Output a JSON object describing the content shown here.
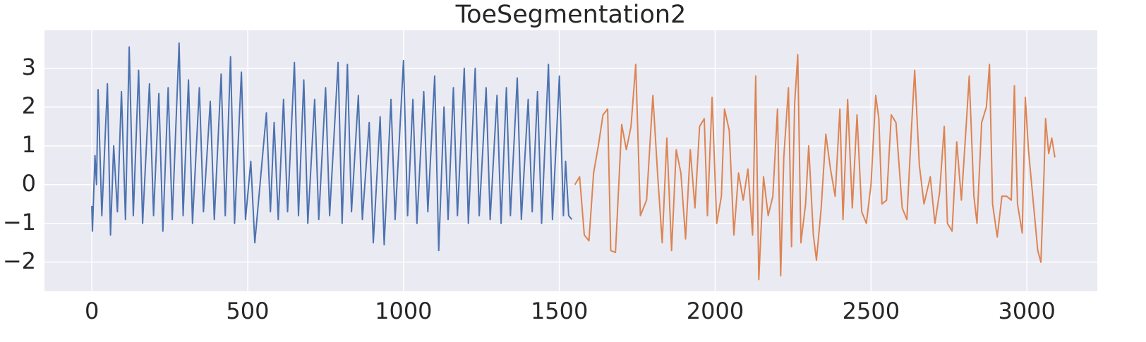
{
  "chart_data": {
    "type": "line",
    "title": "ToeSegmentation2",
    "xlim": [
      -152,
      3226
    ],
    "ylim": [
      -2.75,
      3.98
    ],
    "xticks": [
      0,
      500,
      1000,
      1500,
      2000,
      2500,
      3000
    ],
    "yticks": [
      {
        "value": -2,
        "label": "−2"
      },
      {
        "value": -1,
        "label": "−1"
      },
      0,
      1,
      2,
      3
    ],
    "grid": true,
    "series": [
      {
        "color": "#4c72b0",
        "x": [
          0,
          2,
          10,
          15,
          20,
          32,
          50,
          60,
          70,
          82,
          95,
          108,
          120,
          133,
          150,
          163,
          185,
          198,
          215,
          228,
          245,
          258,
          280,
          293,
          310,
          323,
          345,
          358,
          380,
          393,
          415,
          428,
          445,
          458,
          480,
          493,
          510,
          523,
          560,
          573,
          585,
          598,
          615,
          628,
          650,
          663,
          680,
          693,
          715,
          728,
          750,
          763,
          790,
          803,
          820,
          833,
          855,
          868,
          890,
          903,
          925,
          938,
          960,
          973,
          1000,
          1013,
          1030,
          1043,
          1065,
          1078,
          1100,
          1113,
          1130,
          1143,
          1160,
          1173,
          1195,
          1208,
          1230,
          1243,
          1265,
          1278,
          1300,
          1313,
          1330,
          1343,
          1365,
          1378,
          1400,
          1413,
          1430,
          1443,
          1465,
          1478,
          1500,
          1513,
          1520,
          1530,
          1540
        ],
        "values": [
          -0.55,
          -1.2,
          0.75,
          0.0,
          2.45,
          -0.8,
          2.6,
          -1.3,
          1.0,
          -0.7,
          2.4,
          -0.9,
          3.55,
          -0.8,
          2.95,
          -1.0,
          2.6,
          -0.8,
          2.35,
          -1.2,
          2.5,
          -0.9,
          3.65,
          -0.8,
          2.7,
          -1.0,
          2.5,
          -0.7,
          2.15,
          -0.9,
          2.85,
          -0.8,
          3.3,
          -1.0,
          2.9,
          -0.9,
          0.6,
          -1.5,
          1.85,
          -0.7,
          1.6,
          -0.9,
          2.2,
          -0.7,
          3.15,
          -0.8,
          2.7,
          -1.0,
          2.2,
          -0.9,
          2.5,
          -0.8,
          3.15,
          -1.0,
          3.1,
          -0.7,
          2.3,
          -0.9,
          1.6,
          -1.5,
          1.75,
          -1.55,
          2.2,
          -0.9,
          3.2,
          -0.8,
          2.2,
          -1.0,
          2.4,
          -0.7,
          2.8,
          -1.7,
          2.0,
          -0.9,
          2.5,
          -0.8,
          3.0,
          -1.0,
          3.0,
          -0.8,
          2.5,
          -0.9,
          2.3,
          -1.0,
          2.5,
          -0.8,
          2.75,
          -0.9,
          2.2,
          -0.7,
          2.4,
          -1.0,
          3.1,
          -0.9,
          2.8,
          -0.8,
          0.6,
          -0.8,
          -0.9
        ]
      },
      {
        "color": "#dd8452",
        "x": [
          1550,
          1565,
          1580,
          1595,
          1610,
          1625,
          1640,
          1655,
          1665,
          1680,
          1700,
          1715,
          1730,
          1745,
          1760,
          1780,
          1800,
          1815,
          1830,
          1845,
          1860,
          1875,
          1890,
          1905,
          1920,
          1935,
          1950,
          1965,
          1975,
          1990,
          2005,
          2020,
          2030,
          2045,
          2060,
          2075,
          2090,
          2105,
          2120,
          2130,
          2140,
          2155,
          2170,
          2185,
          2200,
          2210,
          2220,
          2235,
          2245,
          2255,
          2265,
          2275,
          2290,
          2300,
          2315,
          2325,
          2340,
          2355,
          2370,
          2385,
          2400,
          2410,
          2425,
          2440,
          2455,
          2470,
          2485,
          2500,
          2515,
          2525,
          2535,
          2550,
          2565,
          2580,
          2600,
          2615,
          2630,
          2640,
          2655,
          2670,
          2690,
          2705,
          2720,
          2735,
          2745,
          2760,
          2775,
          2790,
          2805,
          2815,
          2830,
          2840,
          2855,
          2870,
          2880,
          2890,
          2905,
          2920,
          2935,
          2950,
          2960,
          2970,
          2985,
          2995,
          3005,
          3020,
          3035,
          3045,
          3055,
          3060,
          3070,
          3080,
          3090
        ],
        "values": [
          0.0,
          0.2,
          -1.3,
          -1.45,
          0.3,
          1.0,
          1.8,
          1.95,
          -1.7,
          -1.75,
          1.55,
          0.9,
          1.5,
          3.1,
          -0.8,
          -0.4,
          2.3,
          0.3,
          -1.5,
          1.2,
          -1.7,
          0.9,
          0.3,
          -1.4,
          0.9,
          -0.6,
          1.5,
          1.7,
          -0.8,
          2.25,
          -1.0,
          -0.3,
          1.95,
          1.4,
          -1.3,
          0.3,
          -0.4,
          0.4,
          -1.3,
          2.8,
          -2.45,
          0.2,
          -0.8,
          -0.3,
          1.95,
          -2.35,
          0.7,
          2.5,
          -1.6,
          2.1,
          3.35,
          -1.5,
          -0.5,
          1.0,
          -1.3,
          -1.95,
          -0.6,
          1.3,
          0.4,
          -0.3,
          1.95,
          -0.9,
          2.2,
          -0.6,
          1.8,
          -0.7,
          -1.0,
          0.0,
          2.3,
          1.7,
          -0.5,
          -0.4,
          1.8,
          1.6,
          -0.6,
          -0.9,
          1.5,
          2.95,
          0.5,
          -0.5,
          0.2,
          -1.0,
          -0.2,
          1.5,
          -1.0,
          -1.2,
          1.1,
          -0.4,
          1.5,
          2.8,
          -0.3,
          -1.0,
          1.6,
          2.0,
          3.1,
          -0.5,
          -1.35,
          -0.3,
          -0.3,
          -0.4,
          2.55,
          -0.5,
          -1.25,
          2.25,
          0.9,
          -0.4,
          -1.7,
          -2.0,
          0.3,
          1.7,
          0.8,
          1.2,
          0.7
        ]
      }
    ]
  }
}
